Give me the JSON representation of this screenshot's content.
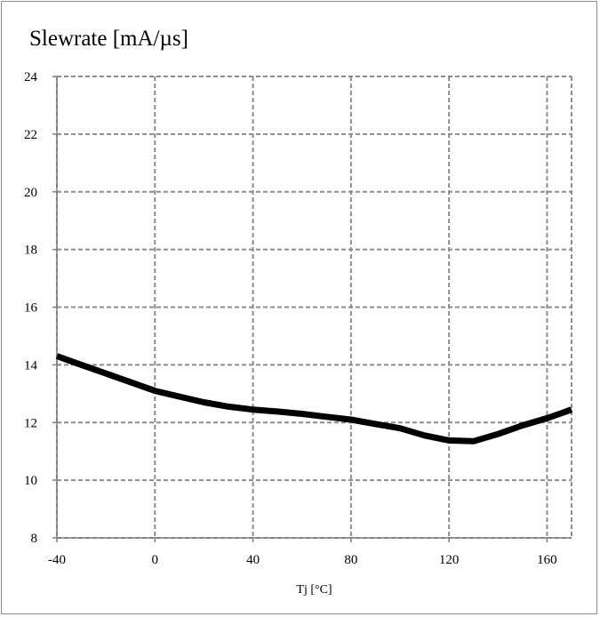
{
  "chart_data": {
    "type": "line",
    "title": "Slewrate [mA/µs]",
    "xlabel": "Tj [°C]",
    "ylabel": "",
    "xlim": [
      -40,
      170
    ],
    "ylim": [
      8,
      24
    ],
    "xticks": [
      -40,
      0,
      40,
      80,
      120,
      160
    ],
    "yticks": [
      8,
      10,
      12,
      14,
      16,
      18,
      20,
      22,
      24
    ],
    "grid": true,
    "grid_style": "dashed",
    "legend": "none",
    "series_color": "#000000",
    "grid_color": "#8c8c8c",
    "series": [
      {
        "x": [
          -40,
          -30,
          -20,
          -10,
          0,
          10,
          20,
          30,
          40,
          50,
          60,
          70,
          80,
          90,
          100,
          110,
          120,
          130,
          140,
          150,
          160,
          170
        ],
        "y": [
          14.3,
          14.0,
          13.7,
          13.4,
          13.1,
          12.9,
          12.7,
          12.55,
          12.45,
          12.38,
          12.3,
          12.2,
          12.1,
          11.95,
          11.8,
          11.55,
          11.38,
          11.35,
          11.6,
          11.9,
          12.15,
          12.45
        ]
      }
    ]
  }
}
